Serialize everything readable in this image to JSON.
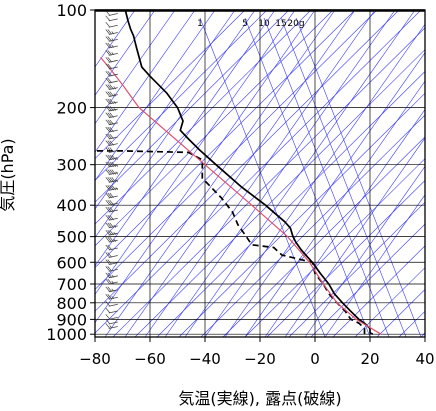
{
  "chart_data": {
    "type": "line",
    "subtype": "skew-T log-P emagram",
    "title": "",
    "xlabel": "気温(実線), 露点(破線)",
    "ylabel": "気圧(hPa)",
    "xlim": [
      -80,
      40
    ],
    "ylim": [
      1020,
      100
    ],
    "yscale": "log",
    "xticks": [
      -80,
      -60,
      -40,
      -20,
      0,
      20,
      40
    ],
    "yticks": [
      100,
      200,
      300,
      400,
      500,
      600,
      700,
      800,
      900,
      1000
    ],
    "x_tick_labels": [
      "−80",
      "−60",
      "−40",
      "−20",
      "0",
      "20",
      "40"
    ],
    "y_tick_labels": [
      "100",
      "200",
      "300",
      "400",
      "500",
      "600",
      "700",
      "800",
      "900",
      "1000"
    ],
    "mixing_ratio_labels": [
      "1",
      "5",
      "10",
      "15",
      "20g"
    ],
    "grid": true,
    "series": [
      {
        "role": "temperature",
        "style": "solid",
        "color": "#000000",
        "points": [
          {
            "p": 1000,
            "t": 21
          },
          {
            "p": 990,
            "t": 20
          },
          {
            "p": 960,
            "t": 20
          },
          {
            "p": 925,
            "t": 18
          },
          {
            "p": 900,
            "t": 16
          },
          {
            "p": 850,
            "t": 13
          },
          {
            "p": 800,
            "t": 10
          },
          {
            "p": 750,
            "t": 7
          },
          {
            "p": 700,
            "t": 5
          },
          {
            "p": 650,
            "t": 2
          },
          {
            "p": 600,
            "t": -1
          },
          {
            "p": 550,
            "t": -5
          },
          {
            "p": 520,
            "t": -7
          },
          {
            "p": 500,
            "t": -8
          },
          {
            "p": 470,
            "t": -9
          },
          {
            "p": 450,
            "t": -11
          },
          {
            "p": 400,
            "t": -18
          },
          {
            "p": 350,
            "t": -27
          },
          {
            "p": 300,
            "t": -36
          },
          {
            "p": 270,
            "t": -42
          },
          {
            "p": 250,
            "t": -46
          },
          {
            "p": 235,
            "t": -49
          },
          {
            "p": 220,
            "t": -48
          },
          {
            "p": 200,
            "t": -50
          },
          {
            "p": 180,
            "t": -54
          },
          {
            "p": 160,
            "t": -60
          },
          {
            "p": 150,
            "t": -63
          },
          {
            "p": 130,
            "t": -65
          },
          {
            "p": 120,
            "t": -66
          },
          {
            "p": 115,
            "t": -67
          },
          {
            "p": 108,
            "t": -68
          },
          {
            "p": 100,
            "t": -69
          }
        ]
      },
      {
        "role": "dewpoint",
        "style": "dashed",
        "color": "#000000",
        "points": [
          {
            "p": 1000,
            "t": 18
          },
          {
            "p": 960,
            "t": 18
          },
          {
            "p": 925,
            "t": 16
          },
          {
            "p": 900,
            "t": 13
          },
          {
            "p": 850,
            "t": 11
          },
          {
            "p": 800,
            "t": 8
          },
          {
            "p": 750,
            "t": 5
          },
          {
            "p": 700,
            "t": 3
          },
          {
            "p": 650,
            "t": 0
          },
          {
            "p": 600,
            "t": -1
          },
          {
            "p": 570,
            "t": -12
          },
          {
            "p": 540,
            "t": -15
          },
          {
            "p": 530,
            "t": -23
          },
          {
            "p": 500,
            "t": -25
          },
          {
            "p": 460,
            "t": -28
          },
          {
            "p": 420,
            "t": -30
          },
          {
            "p": 380,
            "t": -34
          },
          {
            "p": 330,
            "t": -41
          },
          {
            "p": 310,
            "t": -41
          },
          {
            "p": 290,
            "t": -41
          },
          {
            "p": 275,
            "t": -46
          },
          {
            "p": 272,
            "t": -70
          },
          {
            "p": 272,
            "t": -80
          }
        ]
      },
      {
        "role": "parcel",
        "style": "solid",
        "color": "#e05070",
        "points": [
          {
            "p": 1000,
            "t": 24
          },
          {
            "p": 900,
            "t": 15
          },
          {
            "p": 800,
            "t": 8
          },
          {
            "p": 700,
            "t": 3
          },
          {
            "p": 600,
            "t": -2
          },
          {
            "p": 500,
            "t": -10
          },
          {
            "p": 400,
            "t": -23
          },
          {
            "p": 300,
            "t": -40
          },
          {
            "p": 200,
            "t": -64
          },
          {
            "p": 170,
            "t": -70
          },
          {
            "p": 150,
            "t": -75
          },
          {
            "p": 140,
            "t": -78
          }
        ]
      }
    ],
    "wind_barbs": {
      "x": -75,
      "levels": [
        {
          "p": 960,
          "spd": 5
        },
        {
          "p": 930,
          "spd": 10
        },
        {
          "p": 900,
          "spd": 10
        },
        {
          "p": 860,
          "spd": 10
        },
        {
          "p": 820,
          "spd": 10
        },
        {
          "p": 780,
          "spd": 15
        },
        {
          "p": 740,
          "spd": 15
        },
        {
          "p": 700,
          "spd": 15
        },
        {
          "p": 670,
          "spd": 15
        },
        {
          "p": 640,
          "spd": 20
        },
        {
          "p": 610,
          "spd": 20
        },
        {
          "p": 580,
          "spd": 20
        },
        {
          "p": 550,
          "spd": 20
        },
        {
          "p": 520,
          "spd": 25
        },
        {
          "p": 495,
          "spd": 25
        },
        {
          "p": 470,
          "spd": 25
        },
        {
          "p": 445,
          "spd": 30
        },
        {
          "p": 420,
          "spd": 30
        },
        {
          "p": 400,
          "spd": 30
        },
        {
          "p": 380,
          "spd": 30
        },
        {
          "p": 360,
          "spd": 35
        },
        {
          "p": 340,
          "spd": 35
        },
        {
          "p": 322,
          "spd": 35
        },
        {
          "p": 305,
          "spd": 35
        },
        {
          "p": 290,
          "spd": 35
        },
        {
          "p": 275,
          "spd": 30
        },
        {
          "p": 262,
          "spd": 30
        },
        {
          "p": 250,
          "spd": 30
        },
        {
          "p": 238,
          "spd": 30
        },
        {
          "p": 226,
          "spd": 30
        },
        {
          "p": 215,
          "spd": 30
        },
        {
          "p": 205,
          "spd": 25
        },
        {
          "p": 195,
          "spd": 25
        },
        {
          "p": 185,
          "spd": 25
        },
        {
          "p": 176,
          "spd": 25
        },
        {
          "p": 168,
          "spd": 20
        },
        {
          "p": 160,
          "spd": 20
        },
        {
          "p": 152,
          "spd": 20
        },
        {
          "p": 145,
          "spd": 20
        },
        {
          "p": 138,
          "spd": 15
        },
        {
          "p": 131,
          "spd": 15
        },
        {
          "p": 125,
          "spd": 15
        },
        {
          "p": 119,
          "spd": 15
        },
        {
          "p": 113,
          "spd": 10
        },
        {
          "p": 108,
          "spd": 10
        },
        {
          "p": 104,
          "spd": 10
        }
      ]
    },
    "colors": {
      "frame": "#000000",
      "grid": "#000000",
      "isotherm_and_adiabat": "#3a3aff",
      "parcel": "#e05070"
    }
  }
}
